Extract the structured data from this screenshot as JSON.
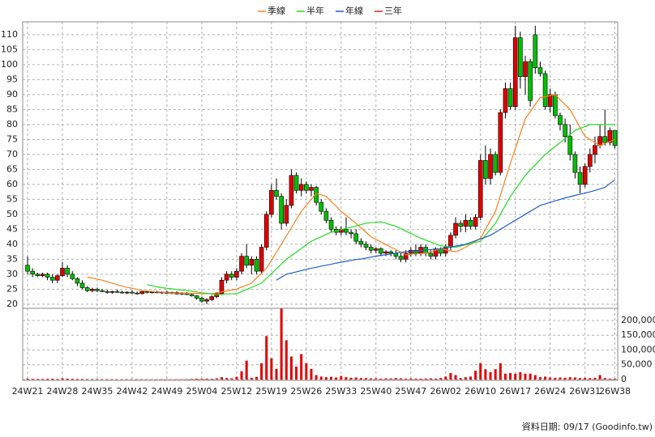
{
  "chart_data": {
    "type": "candlestick",
    "grid": true,
    "legend": "top",
    "up_color": "#e00000",
    "down_color": "#00c000",
    "categories": [
      "24W21",
      null,
      null,
      null,
      null,
      null,
      null,
      "24W28",
      null,
      null,
      null,
      null,
      null,
      null,
      "24W35",
      null,
      null,
      null,
      null,
      null,
      null,
      "24W42",
      null,
      null,
      null,
      null,
      null,
      null,
      "24W49",
      null,
      null,
      null,
      null,
      null,
      null,
      "25W04",
      null,
      null,
      null,
      null,
      null,
      null,
      "25W12",
      null,
      null,
      null,
      null,
      null,
      null,
      "25W19",
      null,
      null,
      null,
      null,
      null,
      null,
      "25W26",
      null,
      null,
      null,
      null,
      null,
      null,
      "25W33",
      null,
      null,
      null,
      null,
      null,
      null,
      "25W40",
      null,
      null,
      null,
      null,
      null,
      null,
      "25W47",
      null,
      null,
      null,
      null,
      null,
      null,
      "26W02",
      null,
      null,
      null,
      null,
      null,
      null,
      "26W10",
      null,
      null,
      null,
      null,
      null,
      null,
      "26W17",
      null,
      null,
      null,
      null,
      null,
      null,
      "26W24",
      null,
      null,
      null,
      null,
      null,
      null,
      "26W31",
      null,
      null,
      null,
      null,
      null,
      "26W38"
    ],
    "open": [
      33,
      31,
      30,
      29.5,
      30,
      29,
      28,
      29.5,
      32,
      30,
      28.5,
      27,
      25.5,
      24.5,
      25,
      24.5,
      24.2,
      24,
      24.2,
      24,
      23.8,
      24,
      23.7,
      23.5,
      24.2,
      23.9,
      24.1,
      23.8,
      24,
      23.6,
      23.9,
      23.4,
      23.7,
      23.2,
      22.8,
      22,
      21,
      21.5,
      22.5,
      23.5,
      28,
      30,
      29,
      31,
      36,
      33,
      35,
      31,
      39,
      50,
      58,
      56,
      47,
      53,
      63,
      58,
      60,
      58,
      59,
      54,
      51,
      48,
      45,
      44,
      45,
      44,
      43.5,
      41,
      40,
      39,
      38,
      38.5,
      37,
      37.5,
      37,
      36,
      35,
      37,
      38,
      37,
      39,
      37,
      36,
      38.5,
      37,
      39,
      43,
      47,
      46,
      48,
      46,
      49,
      68,
      62,
      70,
      64,
      84,
      92,
      86,
      109,
      96,
      101,
      110,
      99,
      97,
      86,
      90,
      83,
      80,
      76,
      70,
      64,
      60,
      66,
      70,
      73,
      76,
      74,
      78
    ],
    "high": [
      36,
      32,
      30.5,
      30.5,
      30.5,
      30,
      30,
      34,
      33,
      31,
      29,
      28,
      26,
      25.5,
      25.5,
      25,
      24.8,
      24.5,
      24.8,
      24.5,
      24.3,
      24.5,
      24.2,
      24.5,
      24.6,
      24.4,
      24.5,
      24.3,
      24.4,
      24.2,
      24.3,
      24,
      24,
      23.6,
      23,
      22.5,
      22,
      23,
      24,
      29,
      31,
      31,
      32,
      37,
      40,
      36,
      36,
      40,
      51,
      60,
      62,
      57,
      55,
      65,
      64,
      62,
      61,
      60,
      59.5,
      55,
      52,
      49,
      46,
      46,
      49,
      45,
      45,
      42,
      41,
      40,
      39,
      39,
      38,
      38,
      38,
      37,
      38,
      39,
      40,
      40,
      40,
      38,
      39,
      39,
      40,
      44,
      49,
      48,
      50,
      49,
      50,
      70,
      73,
      72,
      71,
      85,
      94,
      94,
      113,
      111,
      103,
      102,
      113,
      101,
      98,
      92,
      91,
      84,
      82,
      80,
      71,
      66,
      67,
      72,
      76,
      80,
      85,
      79,
      78
    ],
    "low": [
      30,
      29,
      29,
      29,
      28,
      27,
      27,
      29,
      29,
      28,
      26,
      25,
      24,
      24,
      24,
      24,
      23.5,
      23.5,
      23.8,
      23.5,
      23.3,
      23.5,
      23.2,
      23.3,
      23.6,
      23.5,
      23.6,
      23.4,
      23.4,
      23.3,
      23.2,
      23,
      23,
      22.5,
      21.5,
      20.5,
      20,
      21,
      22,
      23,
      27,
      28,
      28,
      30,
      32,
      30,
      30,
      30,
      38,
      49,
      55,
      45,
      46,
      52,
      57,
      56,
      57,
      56,
      53,
      50,
      47,
      44,
      43,
      43,
      43,
      42,
      40,
      39,
      38,
      37,
      37,
      36,
      36,
      36,
      35,
      34,
      34,
      36,
      36,
      36,
      36,
      35,
      35,
      36,
      36,
      38,
      42,
      44,
      44,
      45,
      45,
      48,
      60,
      60,
      63,
      63,
      82,
      85,
      85,
      92,
      90,
      86,
      97,
      96,
      85,
      84,
      82,
      78,
      74,
      68,
      62,
      57,
      59,
      64,
      67,
      72,
      73,
      73,
      72
    ],
    "close": [
      31,
      30,
      29.5,
      30,
      29,
      28,
      29.5,
      32,
      30,
      28.5,
      27,
      25.5,
      24.5,
      25,
      24.5,
      24.2,
      24,
      24.2,
      24,
      23.8,
      24,
      23.7,
      23.5,
      24.2,
      23.9,
      24.1,
      23.8,
      24,
      23.6,
      23.9,
      23.4,
      23.7,
      23.2,
      22.8,
      22,
      21,
      21.5,
      22.5,
      23.5,
      28,
      30,
      29,
      31,
      36,
      33,
      35,
      31,
      39,
      50,
      58,
      56,
      47,
      53,
      63,
      58,
      60,
      58,
      59,
      54,
      51,
      48,
      45,
      44,
      45,
      44,
      43.5,
      41,
      40,
      39,
      38,
      38.5,
      37,
      37.5,
      37,
      36,
      35,
      37,
      38,
      37,
      39,
      37,
      36,
      38.5,
      37,
      39,
      43,
      47,
      46,
      48,
      46,
      49,
      68,
      62,
      70,
      64,
      84,
      92,
      86,
      109,
      96,
      101,
      88,
      99,
      97,
      86,
      90,
      83,
      80,
      76,
      70,
      64,
      60,
      66,
      70,
      73,
      76,
      74,
      78,
      73
    ],
    "ylim": [
      18.6,
      114.3
    ],
    "yticks": [
      20,
      25,
      30,
      35,
      40,
      45,
      50,
      55,
      60,
      65,
      70,
      75,
      80,
      85,
      90,
      95,
      100,
      105,
      110
    ],
    "series": [
      {
        "name": "季線",
        "color": "#ff7f1e",
        "values": [
          null,
          null,
          null,
          null,
          null,
          null,
          null,
          null,
          null,
          null,
          null,
          null,
          29,
          28.7,
          28.3,
          28,
          27.5,
          27,
          26.5,
          26,
          25.6,
          25.3,
          24.9,
          24.5,
          24.4,
          24.2,
          24.1,
          24,
          23.8,
          23.7,
          23.7,
          23.7,
          23.6,
          23.6,
          23.6,
          23.5,
          23.5,
          23.5,
          23.8,
          24.1,
          24.4,
          24.7,
          25,
          25.7,
          26.3,
          27,
          28.7,
          30.3,
          32,
          34.7,
          37.3,
          40,
          42.8,
          45.5,
          48.3,
          51,
          53,
          55,
          57,
          56.5,
          56,
          54.3,
          52.7,
          51,
          49.7,
          48.3,
          47,
          45.5,
          44,
          42.5,
          41.6,
          40.8,
          39.9,
          39,
          38.2,
          37.3,
          36.5,
          36.6,
          36.8,
          36.9,
          37,
          37.5,
          38,
          38.5,
          38.2,
          37.8,
          37.5,
          38.2,
          39,
          40,
          41,
          42,
          45,
          48,
          51,
          56.3,
          61.7,
          67,
          72,
          77,
          82,
          84.3,
          86.7,
          89,
          89.3,
          89.7,
          90,
          88.3,
          86.7,
          85,
          82,
          79,
          76,
          75,
          74,
          73,
          73.7,
          74.3,
          75
        ]
      },
      {
        "name": "半年",
        "color": "#22dd22",
        "values": [
          null,
          null,
          null,
          null,
          null,
          null,
          null,
          null,
          null,
          null,
          null,
          null,
          null,
          null,
          null,
          null,
          null,
          null,
          null,
          null,
          null,
          null,
          null,
          null,
          26.5,
          26.2,
          25.8,
          25.5,
          25.3,
          25.1,
          24.9,
          24.7,
          24.5,
          24.3,
          24.1,
          23.8,
          23.6,
          23.4,
          23.2,
          23.3,
          23.4,
          23.4,
          23.5,
          24.2,
          24.9,
          25.6,
          26.3,
          27,
          28.6,
          30.2,
          31.8,
          33.4,
          35,
          36.2,
          37.4,
          38.6,
          39.8,
          41,
          41.8,
          42.5,
          43.3,
          44,
          44.4,
          44.9,
          45.3,
          45.7,
          46.1,
          46.6,
          47,
          47.2,
          47.3,
          47.5,
          47,
          46.5,
          46,
          45.2,
          44.4,
          43.6,
          42.8,
          42,
          41.4,
          40.8,
          40.1,
          39.5,
          39.3,
          39.2,
          39,
          39.4,
          39.8,
          40.2,
          40.6,
          41,
          43,
          45,
          47,
          50,
          53,
          56,
          58.3,
          60.7,
          63,
          64.8,
          66.5,
          68.3,
          70,
          71.3,
          72.7,
          74,
          75.3,
          76.7,
          78,
          78.7,
          79.3,
          80,
          80,
          80,
          80,
          80,
          80
        ]
      },
      {
        "name": "年線",
        "color": "#1f5fcf",
        "values": [
          null,
          null,
          null,
          null,
          null,
          null,
          null,
          null,
          null,
          null,
          null,
          null,
          null,
          null,
          null,
          null,
          null,
          null,
          null,
          null,
          null,
          null,
          null,
          null,
          null,
          null,
          null,
          null,
          null,
          null,
          null,
          null,
          null,
          null,
          null,
          null,
          null,
          null,
          null,
          null,
          null,
          null,
          null,
          null,
          null,
          null,
          null,
          null,
          null,
          null,
          28,
          29,
          30,
          30.4,
          30.8,
          31.2,
          31.6,
          32,
          32.3,
          32.7,
          33,
          33.3,
          33.7,
          34,
          34.3,
          34.6,
          34.9,
          35.1,
          35.4,
          35.7,
          36,
          36.3,
          36.5,
          36.8,
          37,
          37.3,
          37.5,
          37.6,
          37.8,
          37.9,
          38.1,
          38.2,
          38.4,
          38.5,
          38.8,
          39.1,
          39.4,
          39.7,
          40,
          40.6,
          41.2,
          41.8,
          42.4,
          43,
          44,
          45,
          46,
          47,
          48,
          49,
          50,
          51,
          52,
          53,
          53.5,
          54,
          54.5,
          55,
          55.5,
          55.9,
          56.3,
          56.7,
          57.1,
          57.5,
          58,
          58.5,
          59,
          60.3,
          61.5
        ]
      },
      {
        "name": "三年",
        "color": "#e02020",
        "values": [
          null,
          null,
          null,
          null,
          null,
          null,
          null,
          null,
          null,
          null,
          null,
          null,
          null,
          null,
          null,
          null,
          null,
          null,
          null,
          null,
          null,
          null,
          null,
          null,
          null,
          null,
          null,
          null,
          null,
          null,
          null,
          null,
          null,
          null,
          null,
          null,
          null,
          null,
          null,
          null,
          null,
          null,
          null,
          null,
          null,
          null,
          null,
          null,
          null,
          null,
          null,
          null,
          null,
          null,
          null,
          null,
          null,
          null,
          null,
          null,
          null,
          null,
          null,
          null,
          null,
          null,
          null,
          null,
          null,
          null,
          null,
          null,
          null,
          null,
          null,
          null,
          null,
          null,
          null,
          null,
          null,
          null,
          null,
          null,
          null,
          null,
          null,
          null,
          null,
          null,
          null,
          null,
          null,
          null,
          null,
          null,
          null,
          null,
          null,
          null,
          null,
          null,
          null,
          null,
          null,
          null,
          null,
          null,
          null,
          null,
          null,
          null,
          null,
          null,
          null,
          null,
          null,
          null,
          null
        ]
      }
    ],
    "volume": {
      "color": "#e00000",
      "values": [
        3000,
        2500,
        2000,
        2000,
        2500,
        3000,
        2000,
        4000,
        3000,
        2500,
        2000,
        2000,
        1500,
        1500,
        1500,
        1200,
        1200,
        1200,
        1000,
        1000,
        1200,
        1000,
        1000,
        1200,
        1000,
        1000,
        1000,
        1200,
        1000,
        1000,
        1200,
        1200,
        1500,
        2000,
        3000,
        2500,
        3000,
        2500,
        4000,
        8000,
        5000,
        4000,
        9000,
        28000,
        64000,
        6000,
        9000,
        55000,
        147000,
        72000,
        36000,
        240000,
        133000,
        78000,
        44000,
        86000,
        55000,
        36000,
        15000,
        10000,
        8000,
        9000,
        7000,
        12000,
        8000,
        6000,
        7000,
        5000,
        5000,
        4000,
        4000,
        3000,
        4000,
        3500,
        5000,
        4000,
        3000,
        3500,
        3000,
        3000,
        3500,
        4000,
        3000,
        5000,
        10000,
        22000,
        15000,
        5000,
        8000,
        10000,
        30000,
        55000,
        35000,
        25000,
        35000,
        55000,
        20000,
        22000,
        20000,
        25000,
        20000,
        20000,
        15000,
        8000,
        10000,
        7000,
        6000,
        7000,
        6000,
        8000,
        7000,
        5000,
        6000,
        5000,
        6000,
        15000,
        5000,
        3000,
        3000
      ],
      "ylim": [
        0,
        241000
      ],
      "yticks": [
        0,
        {
          "value": 50000,
          "label": "50,000"
        },
        {
          "value": 100000,
          "label": "100,000"
        },
        {
          "value": 150000,
          "label": "150,000"
        },
        {
          "value": 200000,
          "label": "200,000"
        }
      ]
    },
    "footer": "資料日期: 09/17  (Goodinfo.tw)"
  }
}
